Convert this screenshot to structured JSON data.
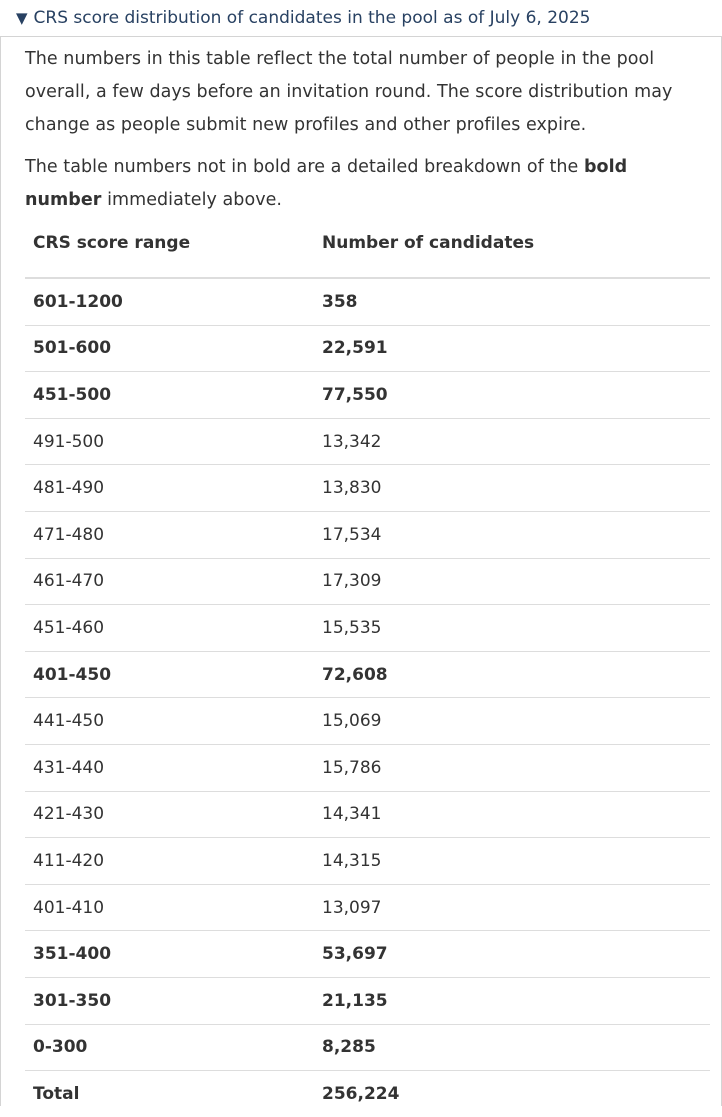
{
  "summary": {
    "marker": "▼",
    "title": "CRS score distribution of candidates in the pool as of July 6, 2025"
  },
  "intro": {
    "paragraph1": "The numbers in this table reflect the total number of people in the pool overall, a few days before an invitation round. The score distribution may change as people submit new profiles and other profiles expire.",
    "paragraph2_before": "The table numbers not in bold are a detailed breakdown of the ",
    "paragraph2_bold": "bold number",
    "paragraph2_after": " immediately above."
  },
  "table": {
    "headers": [
      "CRS score range",
      "Number of candidates"
    ],
    "rows": [
      {
        "range": "601-1200",
        "count": "358",
        "bold": true
      },
      {
        "range": "501-600",
        "count": "22,591",
        "bold": true
      },
      {
        "range": "451-500",
        "count": "77,550",
        "bold": true
      },
      {
        "range": "491-500",
        "count": "13,342",
        "bold": false
      },
      {
        "range": "481-490",
        "count": "13,830",
        "bold": false
      },
      {
        "range": "471-480",
        "count": "17,534",
        "bold": false
      },
      {
        "range": "461-470",
        "count": "17,309",
        "bold": false
      },
      {
        "range": "451-460",
        "count": "15,535",
        "bold": false
      },
      {
        "range": "401-450",
        "count": "72,608",
        "bold": true
      },
      {
        "range": "441-450",
        "count": "15,069",
        "bold": false
      },
      {
        "range": "431-440",
        "count": "15,786",
        "bold": false
      },
      {
        "range": "421-430",
        "count": "14,341",
        "bold": false
      },
      {
        "range": "411-420",
        "count": "14,315",
        "bold": false
      },
      {
        "range": "401-410",
        "count": "13,097",
        "bold": false
      },
      {
        "range": "351-400",
        "count": "53,697",
        "bold": true
      },
      {
        "range": "301-350",
        "count": "21,135",
        "bold": true
      },
      {
        "range": "0-300",
        "count": "8,285",
        "bold": true
      },
      {
        "range": "Total",
        "count": "256,224",
        "bold": true
      }
    ]
  },
  "colors": {
    "summary_link": "#284162",
    "text": "#333333",
    "border": "#d4d4d4"
  }
}
